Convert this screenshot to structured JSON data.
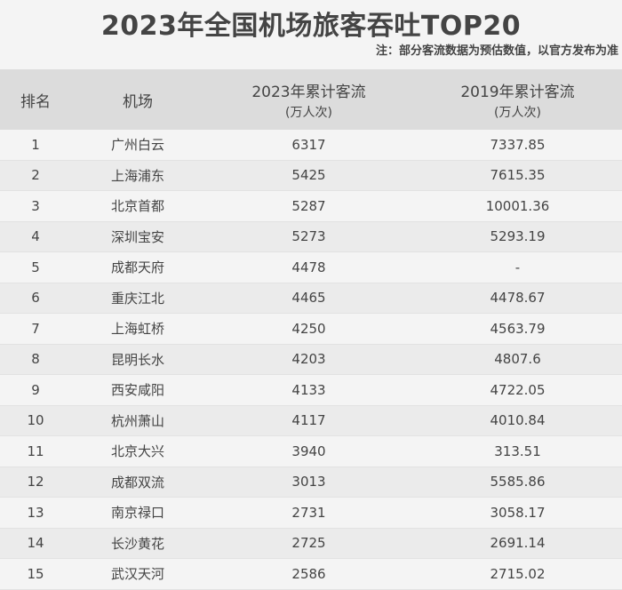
{
  "title": "2023年全国机场旅客吞吐TOP20",
  "note": "注：部分客流数据为预估数值，以官方发布为准",
  "headers": {
    "rank": "排名",
    "airport": "机场",
    "y2023": "2023年累计客流",
    "y2023_unit": "(万人次)",
    "y2019": "2019年累计客流",
    "y2019_unit": "(万人次)"
  },
  "rows": [
    {
      "rank": "1",
      "airport": "广州白云",
      "y2023": "6317",
      "y2019": "7337.85"
    },
    {
      "rank": "2",
      "airport": "上海浦东",
      "y2023": "5425",
      "y2019": "7615.35"
    },
    {
      "rank": "3",
      "airport": "北京首都",
      "y2023": "5287",
      "y2019": "10001.36"
    },
    {
      "rank": "4",
      "airport": "深圳宝安",
      "y2023": "5273",
      "y2019": "5293.19"
    },
    {
      "rank": "5",
      "airport": "成都天府",
      "y2023": "4478",
      "y2019": "-"
    },
    {
      "rank": "6",
      "airport": "重庆江北",
      "y2023": "4465",
      "y2019": "4478.67"
    },
    {
      "rank": "7",
      "airport": "上海虹桥",
      "y2023": "4250",
      "y2019": "4563.79"
    },
    {
      "rank": "8",
      "airport": "昆明长水",
      "y2023": "4203",
      "y2019": "4807.6"
    },
    {
      "rank": "9",
      "airport": "西安咸阳",
      "y2023": "4133",
      "y2019": "4722.05"
    },
    {
      "rank": "10",
      "airport": "杭州萧山",
      "y2023": "4117",
      "y2019": "4010.84"
    },
    {
      "rank": "11",
      "airport": "北京大兴",
      "y2023": "3940",
      "y2019": "313.51"
    },
    {
      "rank": "12",
      "airport": "成都双流",
      "y2023": "3013",
      "y2019": "5585.86"
    },
    {
      "rank": "13",
      "airport": "南京禄口",
      "y2023": "2731",
      "y2019": "3058.17"
    },
    {
      "rank": "14",
      "airport": "长沙黄花",
      "y2023": "2725",
      "y2019": "2691.14"
    },
    {
      "rank": "15",
      "airport": "武汉天河",
      "y2023": "2586",
      "y2019": "2715.02"
    }
  ]
}
